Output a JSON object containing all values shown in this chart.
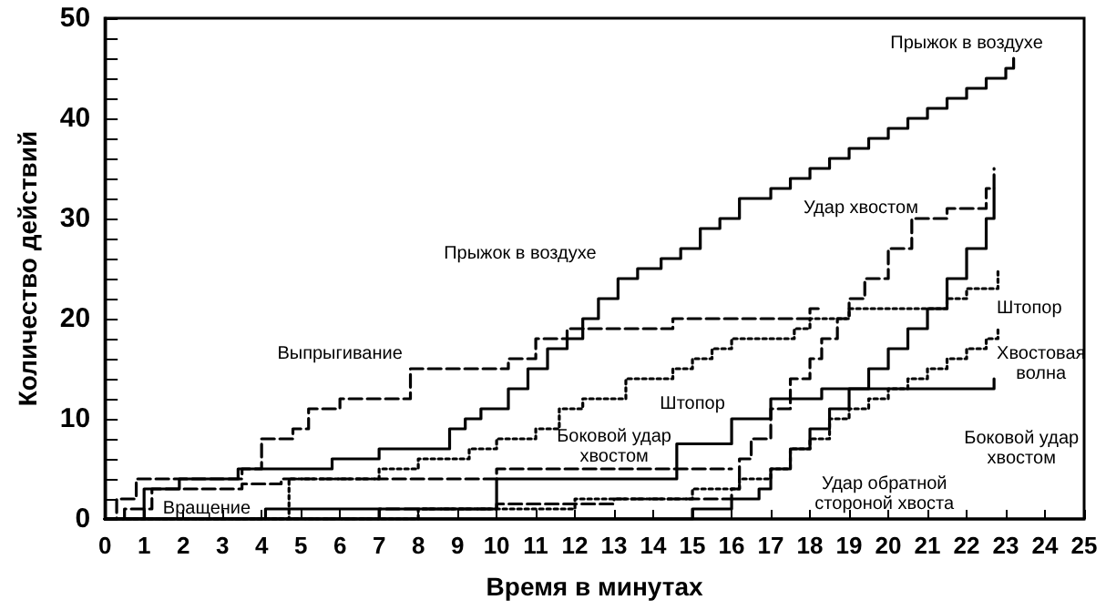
{
  "chart_data": {
    "type": "step",
    "xlabel": "Время в минутах",
    "ylabel": "Количество действий",
    "xlim": [
      0,
      25
    ],
    "ylim": [
      0,
      50
    ],
    "xticks": [
      0,
      1,
      2,
      3,
      4,
      5,
      6,
      7,
      8,
      9,
      10,
      11,
      12,
      13,
      14,
      15,
      16,
      17,
      18,
      19,
      20,
      21,
      22,
      23,
      24,
      25
    ],
    "yticks": [
      0,
      10,
      20,
      30,
      40,
      50
    ],
    "grid": false,
    "marker": "none",
    "series": [
      {
        "color": "#000000",
        "line_style": "solid",
        "x": [
          0,
          1,
          1.9,
          3.4,
          5.8,
          7,
          8.8,
          9.2,
          9.6,
          10.3,
          10.8,
          11.3,
          11.8,
          12.2,
          12.6,
          13.1,
          13.6,
          14.2,
          14.7,
          15.2,
          15.7,
          16.2,
          17,
          17.5,
          18,
          18.5,
          19,
          19.5,
          20,
          20.5,
          21,
          21.5,
          22,
          22.5,
          23,
          23.2
        ],
        "values": [
          0,
          3,
          4,
          5,
          6,
          7,
          9,
          10,
          11,
          13,
          15,
          17,
          18,
          20,
          22,
          24,
          25,
          26,
          27,
          29,
          30,
          32,
          33,
          34,
          35,
          36,
          37,
          38,
          39,
          40,
          41,
          42,
          43,
          44,
          45,
          46
        ]
      },
      {
        "color": "#000000",
        "line_style": "dashed",
        "x": [
          0,
          7,
          10,
          13,
          16,
          16.2,
          16.5,
          17,
          17.5,
          18,
          18.3,
          18.7,
          19,
          19.4,
          20,
          20.6,
          21.5,
          22.5,
          22.7
        ],
        "values": [
          0,
          1,
          1.5,
          2,
          3,
          6,
          8,
          11,
          14,
          16,
          18,
          20,
          22,
          24,
          27,
          30,
          31,
          33,
          35
        ]
      },
      {
        "color": "#000000",
        "line_style": "dotted",
        "x": [
          0,
          4.7,
          7,
          8,
          9.3,
          10,
          11,
          11.6,
          12.2,
          13.3,
          14.5,
          15,
          15.5,
          16,
          17,
          17.6,
          18,
          19,
          20.5,
          21.5,
          22,
          22.8
        ],
        "values": [
          0,
          4,
          5,
          6,
          7,
          8,
          9,
          11,
          12,
          14,
          15,
          16,
          17,
          18,
          18,
          19,
          20,
          21,
          21,
          22,
          23,
          25
        ]
      },
      {
        "color": "#000000",
        "line_style": "dashed",
        "x": [
          0,
          0.3,
          0.8,
          3.5,
          4,
          4.8,
          5.2,
          6,
          7.8,
          10.3,
          11,
          11.8,
          14.5,
          18,
          18.3
        ],
        "values": [
          0,
          2,
          4,
          5,
          8,
          9,
          11,
          12,
          15,
          16,
          18,
          19,
          20,
          21,
          21
        ]
      },
      {
        "color": "#000000",
        "line_style": "solid",
        "x": [
          0,
          4.1,
          10,
          14.6,
          16,
          17,
          18.3,
          22.7
        ],
        "values": [
          0,
          1,
          4,
          7.5,
          10,
          12,
          13,
          14
        ]
      },
      {
        "color": "#000000",
        "line_style": "dotted",
        "x": [
          0,
          8,
          12,
          15,
          16.2,
          17,
          17.5,
          18,
          18.5,
          19,
          19.5,
          20,
          20.5,
          21,
          21.5,
          22,
          22.5,
          22.8
        ],
        "values": [
          0,
          1,
          2,
          3,
          4,
          5,
          7,
          8,
          10,
          11,
          12,
          13,
          14,
          15,
          16,
          17,
          18,
          19
        ]
      },
      {
        "color": "#000000",
        "line_style": "solid",
        "x": [
          0,
          15,
          16,
          16.7,
          17,
          17.5,
          18,
          18.5,
          19,
          19.5,
          20,
          20.5,
          21,
          21.5,
          22,
          22.5,
          22.7
        ],
        "values": [
          0,
          1,
          2,
          3,
          5,
          7,
          9,
          11,
          13,
          15,
          17,
          19,
          21,
          24,
          27,
          30,
          33
        ]
      },
      {
        "color": "#000000",
        "line_style": "dashed",
        "x": [
          0,
          0.5,
          1.2,
          3.5,
          4.5,
          7,
          10,
          16
        ],
        "values": [
          0,
          1,
          3,
          3.5,
          4,
          4,
          5,
          5
        ]
      }
    ],
    "annotations": [
      "Прыжок в воздухе",
      "Прыжок в воздухе",
      "Удар хвостом",
      "Штопор",
      "Штопор",
      "Выпрыгивание",
      "Хвостовая\nволна",
      "Боковой удар\nхвостом",
      "Боковой удар\nхвостом",
      "Удар обратной\nстороной хвоста",
      "Вращение"
    ]
  }
}
